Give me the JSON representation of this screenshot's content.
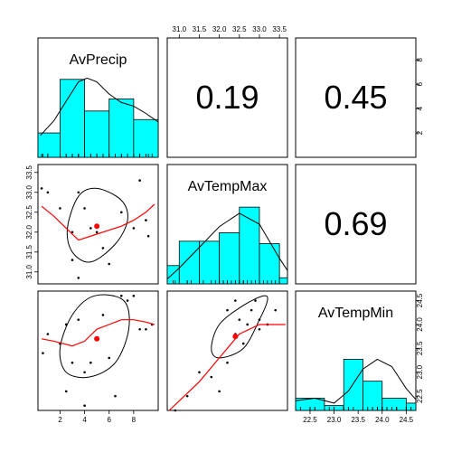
{
  "chart_data": {
    "type": "scatter",
    "variables": [
      "AvPrecip",
      "AvTempMax",
      "AvTempMin"
    ],
    "correlations": [
      {
        "row": 0,
        "col": 1,
        "label": "0.19"
      },
      {
        "row": 0,
        "col": 2,
        "label": "0.45"
      },
      {
        "row": 1,
        "col": 2,
        "label": "0.69"
      }
    ],
    "axes": {
      "AvPrecip": {
        "min": 0.2,
        "max": 10.0,
        "ticks": [
          "2",
          "4",
          "6",
          "8"
        ]
      },
      "AvTempMax": {
        "min": 30.7,
        "max": 33.7,
        "ticks": [
          "31.0",
          "31.5",
          "32.0",
          "32.5",
          "33.0",
          "33.5"
        ]
      },
      "AvTempMin": {
        "min": 22.2,
        "max": 24.7,
        "ticks": [
          "22.5",
          "23.0",
          "23.5",
          "24.0",
          "24.5"
        ]
      },
      "histogram_count": {
        "min": 0,
        "max": 9.8,
        "ticks": [
          "2",
          "4",
          "6",
          "8"
        ]
      }
    },
    "histograms": [
      {
        "variable": "AvPrecip",
        "edges": [
          0.2,
          2,
          4,
          6,
          8,
          10
        ],
        "counts": [
          2,
          6.4,
          3.8,
          4.8,
          3.1
        ],
        "density": [
          [
            0.4,
            1.8
          ],
          [
            1.5,
            3.0
          ],
          [
            2.5,
            4.6
          ],
          [
            3.5,
            6.2
          ],
          [
            4.2,
            6.5
          ],
          [
            5.0,
            6.2
          ],
          [
            6.0,
            5.2
          ],
          [
            7.0,
            4.5
          ],
          [
            8.0,
            4.2
          ],
          [
            9.0,
            3.6
          ],
          [
            10.0,
            2.9
          ]
        ]
      },
      {
        "variable": "AvTempMax",
        "edges": [
          30.7,
          31.0,
          31.5,
          32.0,
          32.5,
          33.0,
          33.5,
          33.7
        ],
        "counts": [
          1.5,
          3.5,
          3.5,
          4.2,
          6.3,
          3.3,
          0.5
        ],
        "density": [
          [
            30.7,
            0.4
          ],
          [
            31.0,
            1.3
          ],
          [
            31.5,
            3.0
          ],
          [
            32.0,
            4.7
          ],
          [
            32.5,
            5.8
          ],
          [
            33.0,
            4.9
          ],
          [
            33.5,
            2.1
          ],
          [
            33.7,
            1.1
          ]
        ]
      },
      {
        "variable": "AvTempMin",
        "edges": [
          22.2,
          22.8,
          23.2,
          23.6,
          24.0,
          24.5,
          24.7
        ],
        "counts": [
          1.0,
          0.4,
          4.2,
          2.4,
          1.0,
          0.6
        ],
        "density": [
          [
            22.2,
            0.8
          ],
          [
            22.6,
            1.0
          ],
          [
            23.0,
            0.6
          ],
          [
            23.3,
            1.6
          ],
          [
            23.6,
            3.4
          ],
          [
            23.9,
            4.2
          ],
          [
            24.2,
            3.6
          ],
          [
            24.5,
            1.8
          ],
          [
            24.7,
            0.9
          ]
        ]
      }
    ],
    "scatters": [
      {
        "x_var": "AvPrecip",
        "y_var": "AvTempMax",
        "points": [
          [
            0.5,
            33.1
          ],
          [
            1.0,
            33.0
          ],
          [
            2.0,
            32.6
          ],
          [
            3.0,
            31.3
          ],
          [
            3.0,
            32.0
          ],
          [
            3.5,
            33.0
          ],
          [
            4.0,
            32.6
          ],
          [
            4.5,
            32.1
          ],
          [
            5.0,
            32.0
          ],
          [
            5.5,
            31.6
          ],
          [
            6.0,
            31.2
          ],
          [
            3.5,
            30.85
          ],
          [
            7.0,
            32.5
          ],
          [
            8.0,
            32.1
          ],
          [
            8.5,
            33.3
          ],
          [
            9.0,
            32.3
          ],
          [
            9.2,
            31.9
          ]
        ],
        "mean": [
          5.0,
          32.15
        ],
        "ellipse": [
          [
            5.0,
            33.1
          ],
          [
            7.0,
            32.8
          ],
          [
            7.5,
            32.3
          ],
          [
            6.5,
            31.7
          ],
          [
            4.5,
            31.25
          ],
          [
            3.0,
            31.5
          ],
          [
            2.6,
            32.1
          ],
          [
            3.5,
            32.9
          ]
        ],
        "loess": [
          [
            0.5,
            32.65
          ],
          [
            1.5,
            32.4
          ],
          [
            2.5,
            32.1
          ],
          [
            3.5,
            31.8
          ],
          [
            5.0,
            31.95
          ],
          [
            6.0,
            32.05
          ],
          [
            7.0,
            32.15
          ],
          [
            8.0,
            32.3
          ],
          [
            9.0,
            32.5
          ],
          [
            9.7,
            32.7
          ]
        ]
      },
      {
        "x_var": "AvPrecip",
        "y_var": "AvTempMin",
        "points": [
          [
            0.6,
            23.4
          ],
          [
            1.0,
            23.8
          ],
          [
            2.0,
            23.6
          ],
          [
            2.5,
            24.0
          ],
          [
            3.0,
            23.2
          ],
          [
            3.5,
            24.1
          ],
          [
            4.0,
            23.0
          ],
          [
            4.5,
            23.2
          ],
          [
            5.0,
            23.7
          ],
          [
            5.5,
            24.2
          ],
          [
            6.0,
            23.3
          ],
          [
            7.0,
            24.6
          ],
          [
            7.5,
            24.5
          ],
          [
            8.0,
            24.6
          ],
          [
            8.5,
            23.9
          ],
          [
            9.0,
            23.9
          ],
          [
            9.5,
            24.0
          ],
          [
            2.5,
            22.6
          ],
          [
            4.0,
            22.3
          ],
          [
            6.5,
            22.5
          ]
        ],
        "mean": [
          5.0,
          23.7
        ],
        "ellipse": [
          [
            4.8,
            24.6
          ],
          [
            7.2,
            24.5
          ],
          [
            7.6,
            23.9
          ],
          [
            6.5,
            23.2
          ],
          [
            4.4,
            22.9
          ],
          [
            2.5,
            23.0
          ],
          [
            2.0,
            23.5
          ],
          [
            3.0,
            24.2
          ]
        ],
        "loess": [
          [
            0.5,
            23.7
          ],
          [
            1.5,
            23.65
          ],
          [
            3.0,
            23.55
          ],
          [
            4.0,
            23.65
          ],
          [
            5.0,
            23.9
          ],
          [
            6.0,
            24.0
          ],
          [
            7.0,
            24.1
          ],
          [
            8.0,
            24.1
          ],
          [
            9.0,
            24.05
          ],
          [
            9.7,
            24.0
          ]
        ]
      },
      {
        "x_var": "AvTempMax",
        "y_var": "AvTempMin",
        "points": [
          [
            30.9,
            22.2
          ],
          [
            31.2,
            22.5
          ],
          [
            31.5,
            23.0
          ],
          [
            31.8,
            22.9
          ],
          [
            32.0,
            22.6
          ],
          [
            32.2,
            23.2
          ],
          [
            32.2,
            24.3
          ],
          [
            32.4,
            23.8
          ],
          [
            32.5,
            24.1
          ],
          [
            32.6,
            23.6
          ],
          [
            32.7,
            24.0
          ],
          [
            32.8,
            24.3
          ],
          [
            33.0,
            24.1
          ],
          [
            33.0,
            23.9
          ],
          [
            33.2,
            24.0
          ],
          [
            33.4,
            24.3
          ],
          [
            32.9,
            24.5
          ],
          [
            32.4,
            24.5
          ]
        ],
        "mean": [
          32.4,
          23.75
        ],
        "ellipse": [
          [
            33.2,
            24.5
          ],
          [
            33.0,
            24.1
          ],
          [
            32.6,
            23.5
          ],
          [
            32.0,
            23.3
          ],
          [
            31.8,
            23.5
          ],
          [
            32.0,
            24.0
          ],
          [
            32.6,
            24.4
          ],
          [
            33.1,
            24.6
          ]
        ],
        "loess": [
          [
            30.75,
            22.2
          ],
          [
            31.0,
            22.4
          ],
          [
            31.5,
            22.8
          ],
          [
            32.0,
            23.3
          ],
          [
            32.5,
            23.8
          ],
          [
            33.0,
            24.0
          ],
          [
            33.5,
            24.0
          ],
          [
            33.65,
            24.0
          ]
        ]
      }
    ]
  }
}
